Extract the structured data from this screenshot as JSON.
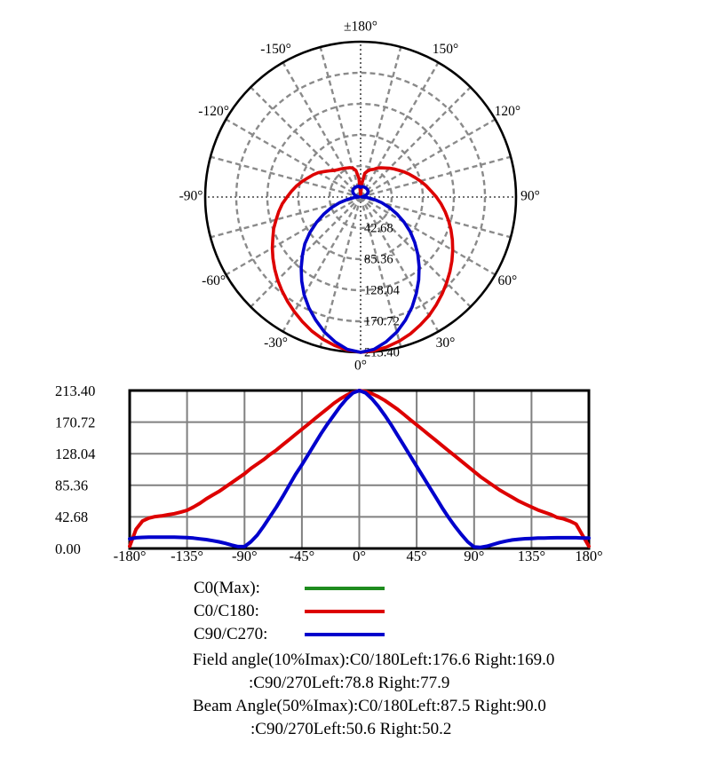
{
  "legend": {
    "items": [
      {
        "label": "C0(Max):",
        "color": "#1e8c1e"
      },
      {
        "label": "C0/C180:",
        "color": "#dd0000"
      },
      {
        "label": "C90/C270:",
        "color": "#0000cc"
      }
    ]
  },
  "footer": {
    "lines": [
      "Field angle(10%Imax):C0/180Left:176.6 Right:169.0",
      ":C90/270Left:78.8 Right:77.9",
      "Beam Angle(50%Imax):C0/180Left:87.5 Right:90.0",
      ":C90/270Left:50.6 Right:50.2"
    ]
  },
  "chart_data": {
    "type": [
      "polar",
      "line"
    ],
    "title": "",
    "angles_deg": [
      -180,
      -175,
      -170,
      -165,
      -160,
      -155,
      -150,
      -145,
      -140,
      -135,
      -130,
      -125,
      -120,
      -115,
      -110,
      -105,
      -100,
      -95,
      -90,
      -85,
      -80,
      -75,
      -70,
      -65,
      -60,
      -55,
      -50,
      -45,
      -40,
      -35,
      -30,
      -25,
      -20,
      -15,
      -10,
      -5,
      0,
      5,
      10,
      15,
      20,
      25,
      30,
      35,
      40,
      45,
      50,
      55,
      60,
      65,
      70,
      75,
      80,
      85,
      90,
      95,
      100,
      105,
      110,
      115,
      120,
      125,
      130,
      135,
      140,
      145,
      150,
      155,
      160,
      165,
      170,
      175,
      180
    ],
    "series": [
      {
        "name": "C0/C180",
        "color": "#dd0000",
        "values": [
          3,
          26,
          37,
          41,
          43,
          44,
          45.5,
          47,
          49,
          51.5,
          56,
          61,
          67,
          72,
          77,
          83,
          89,
          95,
          101,
          108,
          114,
          120,
          127,
          133,
          140,
          147,
          154,
          161,
          168,
          175,
          182,
          189,
          196,
          202,
          207,
          211,
          213.4,
          212,
          209,
          205,
          200,
          194,
          188,
          181,
          174,
          167,
          160,
          153,
          146,
          139,
          132,
          125,
          118,
          111,
          104,
          97,
          91,
          85,
          79,
          74,
          69,
          64,
          60,
          56,
          52,
          49,
          46,
          42,
          40,
          37,
          33,
          18,
          3
        ]
      },
      {
        "name": "C90/C270",
        "color": "#0000cc",
        "values": [
          13,
          14.5,
          15,
          15.2,
          15.3,
          15.3,
          15.3,
          15.2,
          15,
          14.6,
          14,
          13,
          12,
          10.5,
          9,
          7,
          4.5,
          2.5,
          2.5,
          9,
          18,
          30,
          43,
          56,
          70,
          85,
          100,
          113,
          127,
          141,
          155,
          168,
          180,
          192,
          202,
          210,
          213.4,
          210,
          202,
          192,
          180,
          167,
          153,
          139,
          125,
          111,
          97,
          83,
          69,
          55,
          42,
          30,
          19,
          9,
          2,
          1.5,
          3,
          5.5,
          8,
          10,
          11.5,
          12.5,
          13.2,
          13.6,
          14,
          14.2,
          14.4,
          14.5,
          14.5,
          14.5,
          14.5,
          14.2,
          14
        ]
      }
    ],
    "ymax": 213.4,
    "polar": {
      "orientation": "0-at-bottom, positive angles right, negative left",
      "ring_labels": [
        "42.68",
        "85.36",
        "128.04",
        "170.72",
        "213.40"
      ],
      "ring_values": [
        42.68,
        85.36,
        128.04,
        170.72,
        213.4
      ],
      "angle_labels": [
        {
          "deg": 180,
          "text": "±180°"
        },
        {
          "deg": -150,
          "text": "-150°"
        },
        {
          "deg": -120,
          "text": "-120°"
        },
        {
          "deg": -90,
          "text": "-90°"
        },
        {
          "deg": -60,
          "text": "-60°"
        },
        {
          "deg": -30,
          "text": "-30°"
        },
        {
          "deg": 0,
          "text": "0°"
        },
        {
          "deg": 30,
          "text": "30°"
        },
        {
          "deg": 60,
          "text": "60°"
        },
        {
          "deg": 90,
          "text": "90°"
        },
        {
          "deg": 120,
          "text": "120°"
        },
        {
          "deg": 150,
          "text": "150°"
        }
      ],
      "grid": {
        "radial_step_deg": 15,
        "ring_step_value": 42.68
      }
    },
    "cartesian": {
      "x_ticks": [
        -180,
        -135,
        -90,
        -45,
        0,
        45,
        90,
        135,
        180
      ],
      "x_tick_labels": [
        "-180°",
        "-135°",
        "-90°",
        "-45°",
        "0°",
        "45°",
        "90°",
        "135°",
        "180°"
      ],
      "y_ticks": [
        213.4,
        170.72,
        128.04,
        85.36,
        42.68,
        0
      ],
      "y_tick_labels": [
        "213.40",
        "170.72",
        "128.04",
        "85.36",
        "42.68",
        "0.00"
      ],
      "xlim": [
        -180,
        180
      ],
      "ylim": [
        0,
        213.4
      ],
      "grid": true
    }
  }
}
